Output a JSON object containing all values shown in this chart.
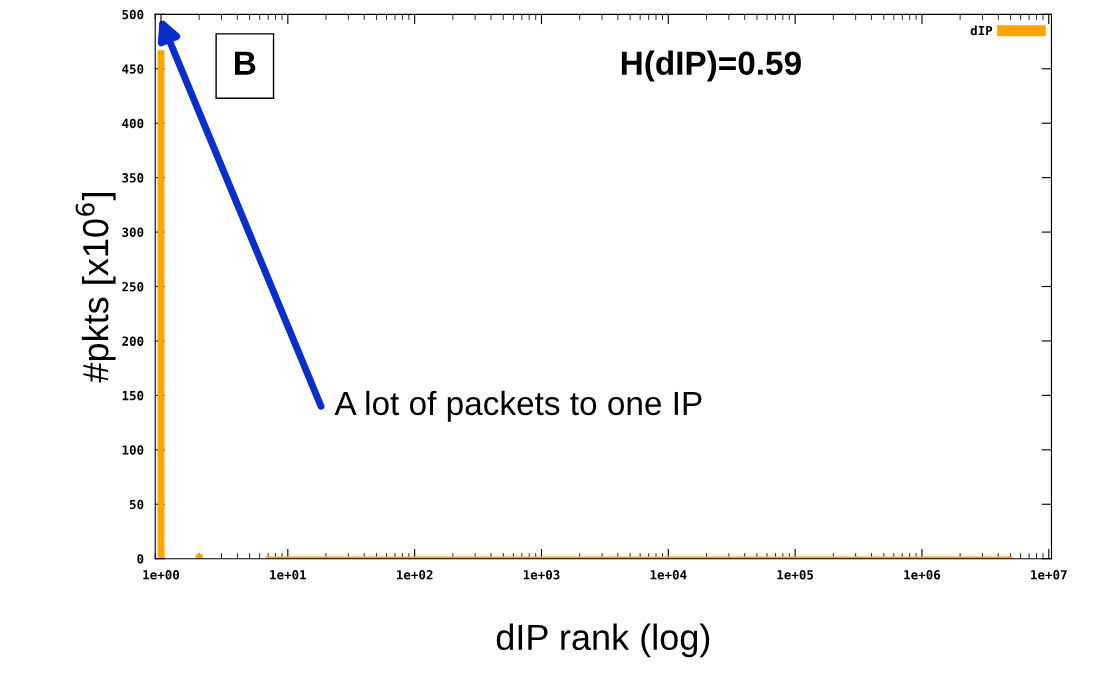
{
  "chart_data": {
    "type": "bar",
    "xlabel": "dIP rank (log)",
    "ylabel": "#pkts [x10$^{6}$]",
    "series": [
      {
        "name": "dIP",
        "color": "#ffa500",
        "x": [
          1,
          2
        ],
        "values": [
          467,
          4
        ]
      },
      {
        "type": "line",
        "color": "#ffa500",
        "x": [
          7,
          5000000
        ],
        "values": [
          0,
          0
        ]
      }
    ],
    "log": "x",
    "xlim": [
      0.9,
      10500000
    ],
    "ylim": [
      0,
      500
    ],
    "xticks": [
      {
        "value": 1,
        "label": "1e+00"
      },
      {
        "value": 10,
        "label": "1e+01"
      },
      {
        "value": 100,
        "label": "1e+02"
      },
      {
        "value": 1000,
        "label": "1e+03"
      },
      {
        "value": 10000,
        "label": "1e+04"
      },
      {
        "value": 100000,
        "label": "1e+05"
      },
      {
        "value": 1000000,
        "label": "1e+06"
      },
      {
        "value": 10000000,
        "label": "1e+07"
      }
    ],
    "yticks": [
      0,
      50,
      100,
      150,
      200,
      250,
      300,
      350,
      400,
      450,
      500
    ],
    "annotations": [
      "B",
      "H(dIP)=0.59",
      "A lot of packets to one IP"
    ],
    "legend": "top right",
    "grid": false
  }
}
